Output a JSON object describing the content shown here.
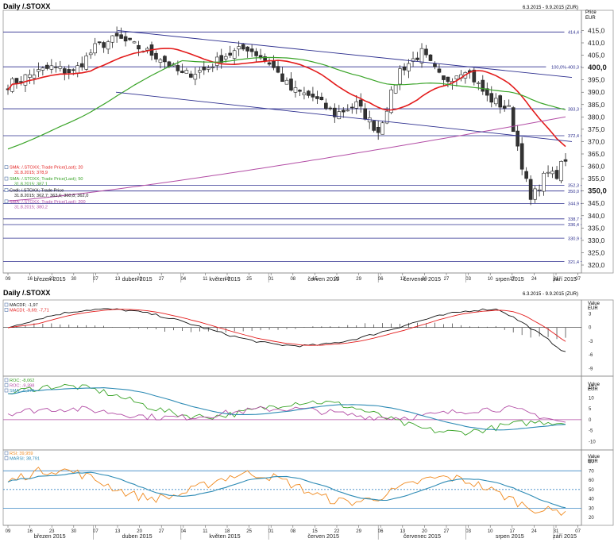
{
  "app": {
    "top_title": "Daily /.STOXX",
    "top_range": "6.3.2015 - 9.9.2015 (ZUR)",
    "bottom_title": "Daily /.STOXX",
    "bottom_range": "6.3.2015 - 9.9.2015 (ZUR)"
  },
  "colors": {
    "candle_up": "#ffffff",
    "candle_down": "#333333",
    "sma20": "#e31b1b",
    "sma50": "#3aa428",
    "sma200": "#b34ea6",
    "trend": "#2d2f8f",
    "hline": "#2d2f8f",
    "macd": "#111111",
    "macd_signal": "#e31b1b",
    "roc1": "#3aa428",
    "roc2": "#b34ea6",
    "roc_sma": "#2e8bb5",
    "rsi": "#f08a1f",
    "marsi": "#2e8bb5"
  },
  "x_axis": {
    "days": [
      "09",
      "16",
      "23",
      "30",
      "07",
      "13",
      "20",
      "27",
      "04",
      "11",
      "18",
      "25",
      "01",
      "08",
      "15",
      "22",
      "29",
      "06",
      "13",
      "20",
      "27",
      "03",
      "10",
      "17",
      "24",
      "31",
      "07"
    ],
    "months": [
      "březen 2015",
      "duben 2015",
      "květen 2015",
      "červen 2015",
      "červenec 2015",
      "srpen 2015",
      "září 2015"
    ]
  },
  "price_axis": {
    "title": "Price",
    "unit": "EUR",
    "ticks": [
      "415,0",
      "410,0",
      "405,0",
      "400,0",
      "395,0",
      "390,0",
      "385,0",
      "380,0",
      "375,0",
      "370,0",
      "365,0",
      "360,0",
      "355,0",
      "350,0",
      "345,0",
      "340,0",
      "335,0",
      "330,0",
      "325,0",
      "320,0"
    ],
    "bold_ticks": [
      "400,0",
      "350,0"
    ]
  },
  "hlines": [
    {
      "value": 414.4,
      "label": "414,4"
    },
    {
      "value": 400.3,
      "label": "100,0%-400,3"
    },
    {
      "value": 383.3,
      "label": "383,3"
    },
    {
      "value": 372.4,
      "label": "372,4"
    },
    {
      "value": 352.3,
      "label": "352,3"
    },
    {
      "value": 350.0,
      "label": "350,0"
    },
    {
      "value": 344.9,
      "label": "344,9"
    },
    {
      "value": 338.7,
      "label": "338,7"
    },
    {
      "value": 336.4,
      "label": "336,4"
    },
    {
      "value": 330.9,
      "label": "330,9"
    },
    {
      "value": 321.4,
      "label": "321,4"
    }
  ],
  "legend_price": [
    {
      "line1": "SMA: /.STOXX; Trade Price(Last); 20",
      "line2": "31.8.2015; 378,9",
      "color": "#e31b1b"
    },
    {
      "line1": "SMA: /.STOXX; Trade Price(Last); 50",
      "line2": "31.8.2015; 387,1",
      "color": "#3aa428"
    },
    {
      "line1": "Cndl: /.STOXX; Trade Price",
      "line2": "31.8.2015; 362,7; 363,6; 360,8; 362,0",
      "color": "#111111"
    },
    {
      "line1": "SMA: /.STOXX; Trade Price(Last); 200",
      "line2": "31.8.2015; 380,2",
      "color": "#b34ea6"
    }
  ],
  "macd_panel": {
    "legend": [
      {
        "text": "MACDF; -1,97",
        "color": "#111111"
      },
      {
        "text": "MACDI; -9,69; -7,71",
        "color": "#e31b1b"
      }
    ],
    "axis_title": "Value",
    "axis_unit": "EUR",
    "ticks": [
      "3",
      "0",
      "-3",
      "-6",
      "-9"
    ]
  },
  "roc_panel": {
    "legend": [
      {
        "text": "ROC; -8,062",
        "color": "#3aa428"
      },
      {
        "text": "ROC; -9,398",
        "color": "#b34ea6"
      },
      {
        "text": "SMA; -6,179",
        "color": "#2e8bb5"
      }
    ],
    "axis_title": "Value",
    "axis_unit": "EUR",
    "ticks": [
      "15",
      "10",
      "5",
      "0",
      "-5",
      "-10"
    ]
  },
  "rsi_panel": {
    "legend": [
      {
        "text": "RSI; 39,959",
        "color": "#f08a1f"
      },
      {
        "text": "MARSI; 38,791",
        "color": "#2e8bb5"
      }
    ],
    "axis_title": "Value",
    "axis_unit": "EUR",
    "ticks": [
      "80",
      "70",
      "60",
      "50",
      "40",
      "30",
      "20"
    ]
  },
  "chart_data": [
    {
      "type": "candlestick",
      "title": "Daily /.STOXX",
      "ylabel": "Price EUR",
      "ylim": [
        320,
        419
      ],
      "x_days": [
        "09",
        "16",
        "23",
        "30",
        "07",
        "13",
        "20",
        "27",
        "04",
        "11",
        "18",
        "25",
        "01",
        "08",
        "15",
        "22",
        "29",
        "06",
        "13",
        "20",
        "27",
        "03",
        "10",
        "17",
        "24",
        "31",
        "07"
      ],
      "close_by_week": [
        393,
        397,
        400,
        398,
        408,
        412,
        408,
        404,
        397,
        399,
        405,
        408,
        402,
        391,
        388,
        381,
        385,
        374,
        399,
        406,
        394,
        400,
        388,
        383,
        346,
        362
      ],
      "series": [
        {
          "name": "SMA: /.STOXX; Trade Price(Last); 20",
          "last": 378.9
        },
        {
          "name": "SMA: /.STOXX; Trade Price(Last); 50",
          "last": 387.1
        },
        {
          "name": "SMA: /.STOXX; Trade Price(Last); 200",
          "last": 380.2
        }
      ],
      "last_candle": {
        "date": "31.8.2015",
        "open": 362.7,
        "high": 363.6,
        "low": 360.8,
        "close": 362.0
      },
      "levels": [
        414.4,
        400.3,
        383.3,
        372.4,
        352.3,
        350.0,
        344.9,
        338.7,
        336.4,
        330.9,
        321.4
      ]
    },
    {
      "type": "line",
      "title": "MACD",
      "ylim": [
        -10,
        5
      ],
      "series": [
        {
          "name": "MACDF",
          "last": -1.97
        },
        {
          "name": "MACDI",
          "last": -9.69
        }
      ]
    },
    {
      "type": "line",
      "title": "ROC",
      "ylim": [
        -12,
        17
      ],
      "series": [
        {
          "name": "ROC",
          "last": -8.062
        },
        {
          "name": "ROC",
          "last": -9.398
        },
        {
          "name": "SMA",
          "last": -6.179
        }
      ]
    },
    {
      "type": "line",
      "title": "RSI",
      "ylim": [
        15,
        83
      ],
      "series": [
        {
          "name": "RSI",
          "last": 39.959
        },
        {
          "name": "MARSI",
          "last": 38.791
        }
      ]
    }
  ]
}
